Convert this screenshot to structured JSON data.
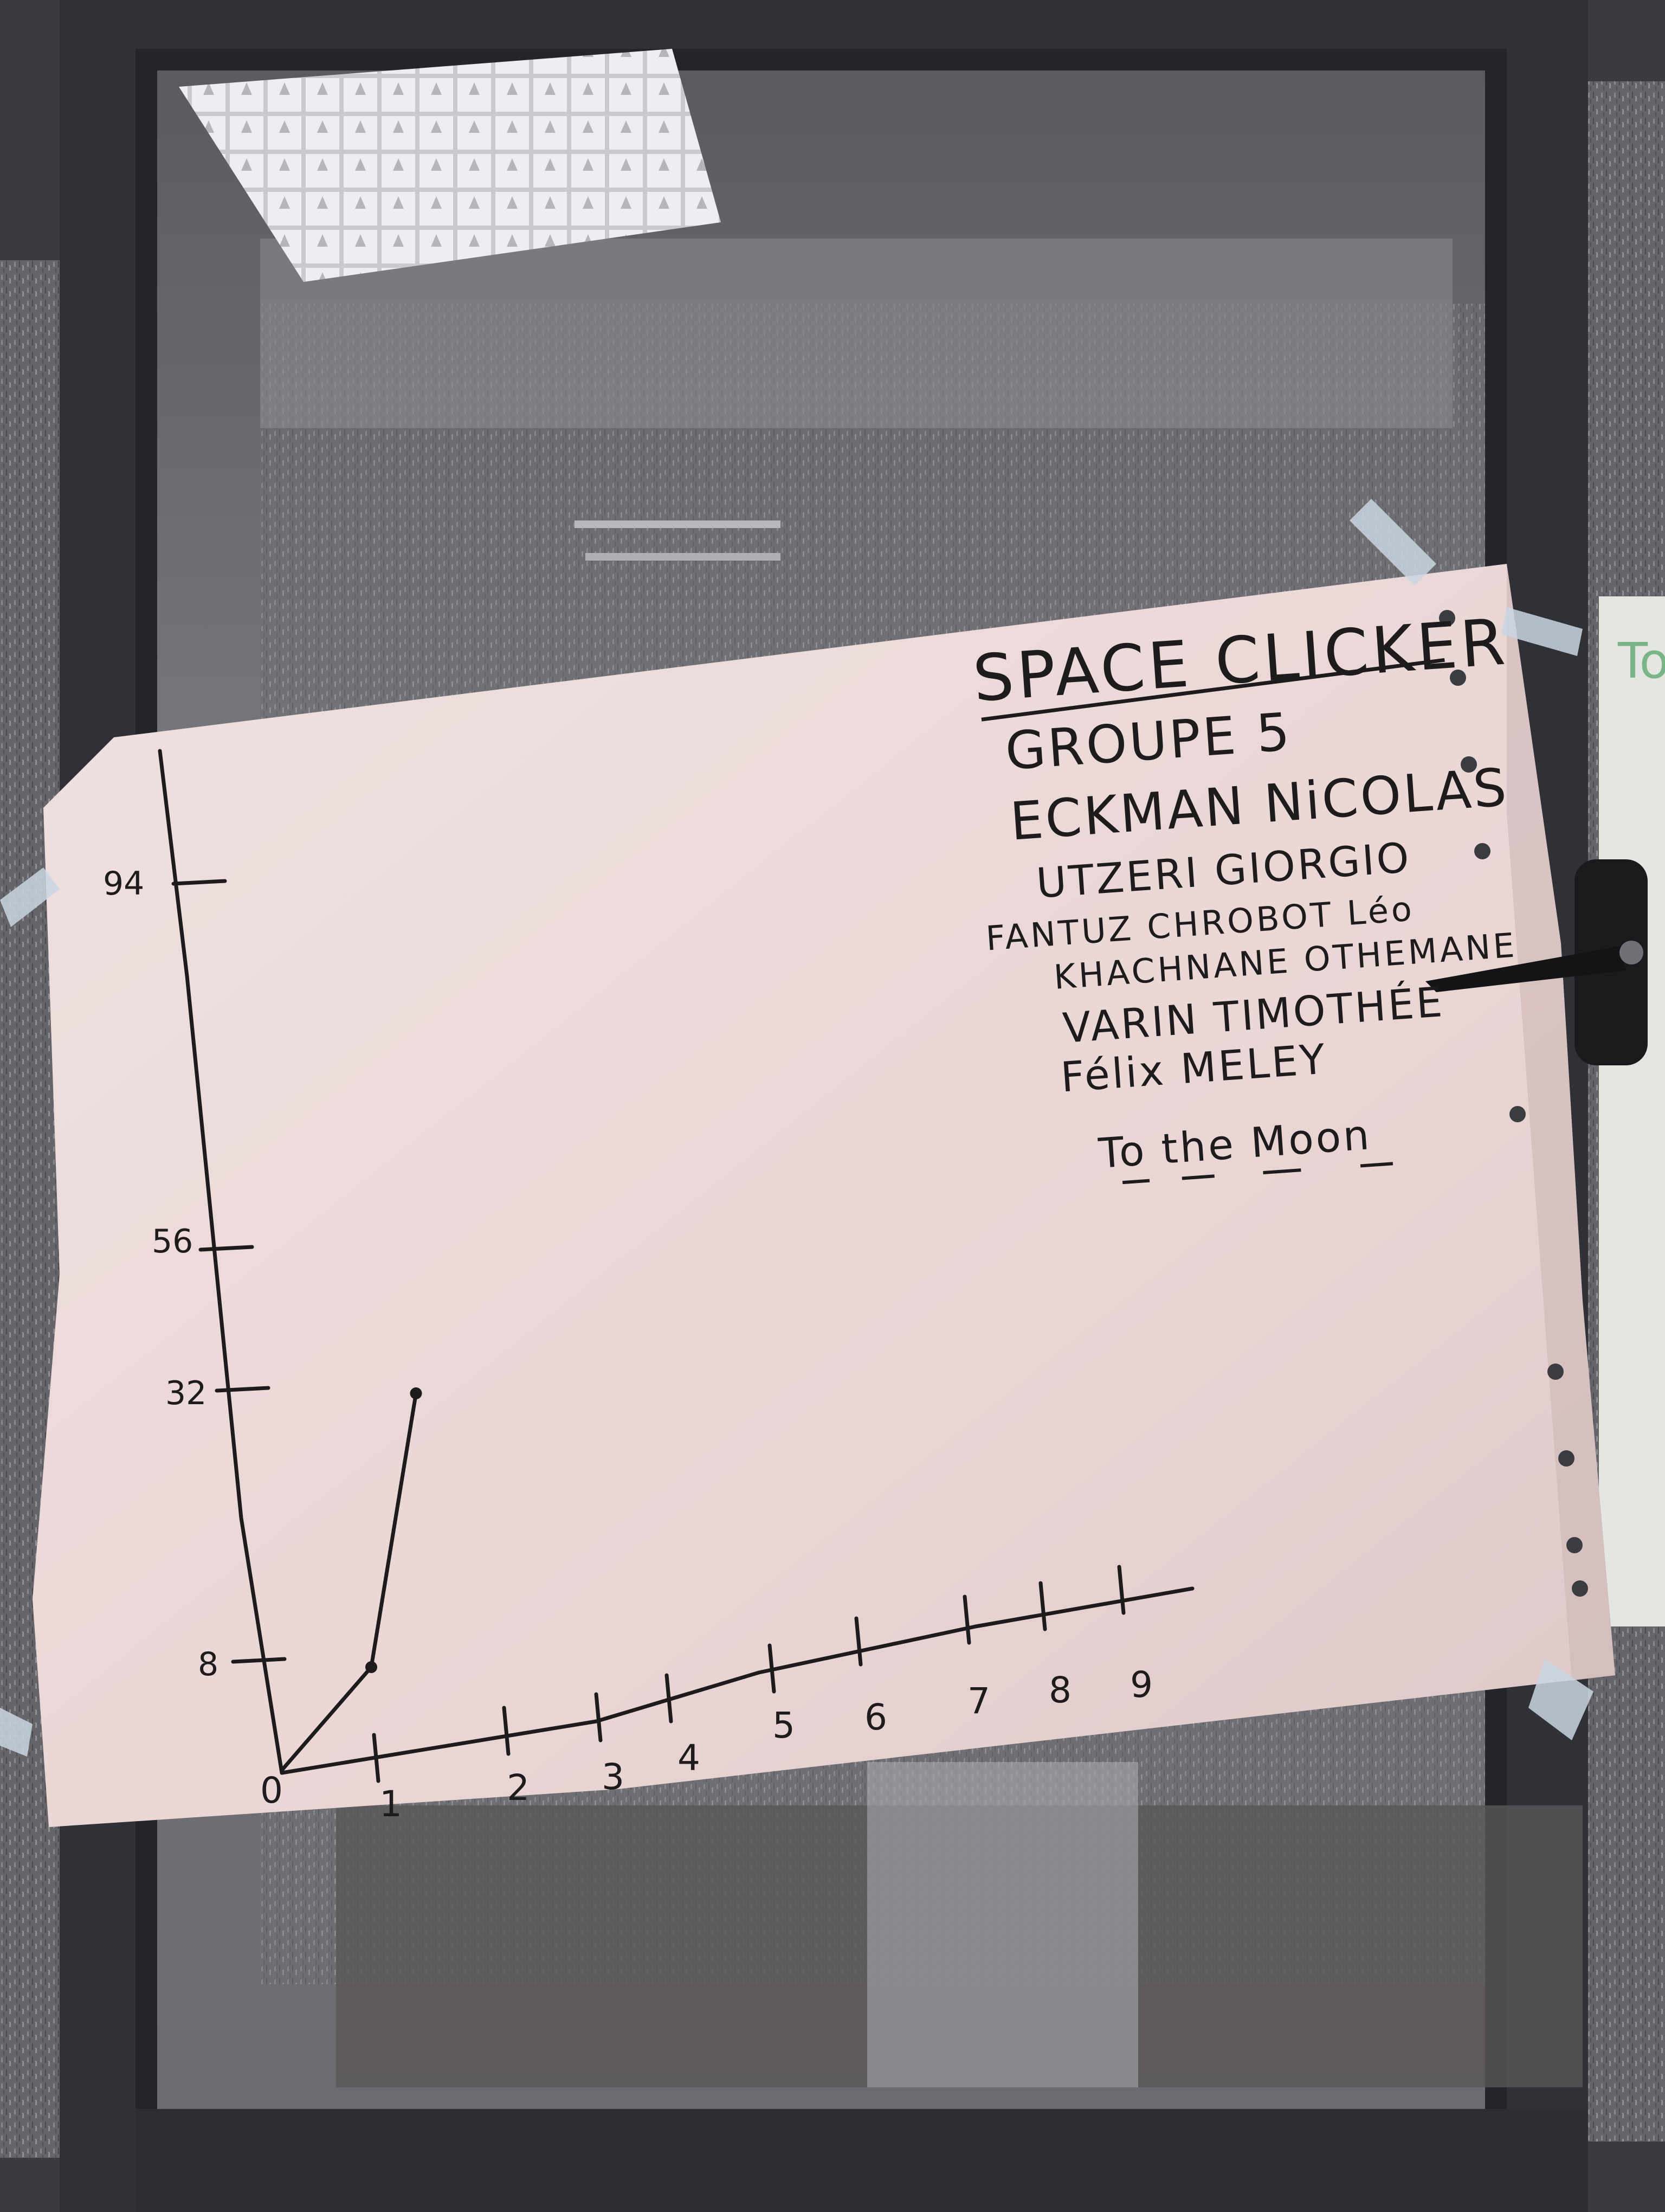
{
  "poster": {
    "title": "SPACE CLICKER",
    "group": "GROUPE 5",
    "members": [
      "ECKMAN NiCOLAS",
      "UTZERI GIORGIO",
      "FANTUZ CHROBOT Léo",
      "KHACHNANE OTHEMANE",
      "VARIN TIMOTHÉE",
      "Félix MELEY"
    ],
    "slogan": "To the Moon"
  },
  "chart_data": {
    "type": "line",
    "title": "",
    "xlabel": "",
    "ylabel": "",
    "x_ticks": [
      "0",
      "1",
      "2",
      "3",
      "4",
      "5",
      "6",
      "7",
      "8",
      "9"
    ],
    "y_ticks": [
      "8",
      "32",
      "56",
      "94"
    ],
    "series": [
      {
        "x": [
          0,
          1,
          1.5
        ],
        "y": [
          0,
          8,
          32
        ]
      }
    ],
    "xlim": [
      0,
      9
    ],
    "ylim": [
      0,
      94
    ],
    "grid": false
  },
  "colors": {
    "ink": "#1e1b1c",
    "paper": "#ead8d8",
    "frame": "#33363d",
    "tape": "#c9d6e2"
  }
}
